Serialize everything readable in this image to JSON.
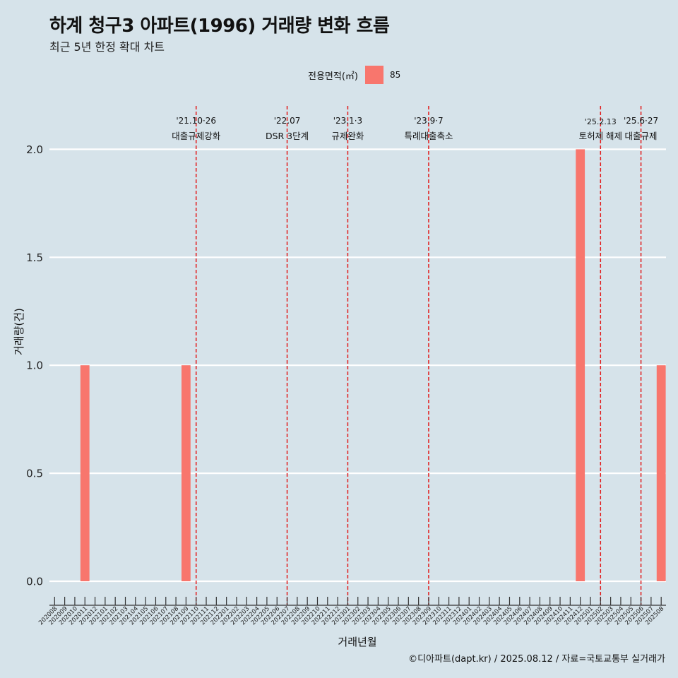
{
  "header": {
    "title": "하계 청구3 아파트(1996) 거래량 변화 흐름",
    "subtitle": "최근 5년 한정 확대 차트"
  },
  "legend": {
    "title": "전용면적(㎡)",
    "label": "85",
    "color": "#f8766d"
  },
  "footer": {
    "credit": "©디아파트(dapt.kr) / 2025.08.12 / 자료=국토교통부 실거래가"
  },
  "chart_data": {
    "type": "bar",
    "xlabel": "거래년월",
    "ylabel": "거래량(건)",
    "ylim": [
      0,
      2
    ],
    "yticks": [
      "0.0",
      "0.5",
      "1.0",
      "1.5",
      "2.0"
    ],
    "grid": "horizontal",
    "legend_position": "top",
    "categories": [
      "202008",
      "202009",
      "202010",
      "202011",
      "202012",
      "202101",
      "202102",
      "202103",
      "202104",
      "202105",
      "202106",
      "202107",
      "202108",
      "202109",
      "202110",
      "202111",
      "202112",
      "202201",
      "202202",
      "202203",
      "202204",
      "202205",
      "202206",
      "202207",
      "202208",
      "202209",
      "202210",
      "202211",
      "202212",
      "202301",
      "202302",
      "202303",
      "202304",
      "202305",
      "202306",
      "202307",
      "202308",
      "202309",
      "202310",
      "202311",
      "202312",
      "202401",
      "202402",
      "202403",
      "202404",
      "202405",
      "202406",
      "202407",
      "202408",
      "202409",
      "202410",
      "202411",
      "202412",
      "202501",
      "202502",
      "202503",
      "202504",
      "202505",
      "202506",
      "202507",
      "202508"
    ],
    "series": [
      {
        "name": "85",
        "color": "#f8766d",
        "values": [
          0,
          0,
          0,
          1,
          0,
          0,
          0,
          0,
          0,
          0,
          0,
          0,
          0,
          1,
          0,
          0,
          0,
          0,
          0,
          0,
          0,
          0,
          0,
          0,
          0,
          0,
          0,
          0,
          0,
          0,
          0,
          0,
          0,
          0,
          0,
          0,
          0,
          0,
          0,
          0,
          0,
          0,
          0,
          0,
          0,
          0,
          0,
          0,
          0,
          0,
          0,
          0,
          2,
          0,
          0,
          0,
          0,
          0,
          0,
          0,
          1
        ]
      }
    ],
    "annotations": [
      {
        "x": "202110",
        "date": "'21.10·26",
        "label": "대출규제강화"
      },
      {
        "x": "202207",
        "date": "'22.07",
        "label": "DSR 3단계"
      },
      {
        "x": "202301",
        "date": "'23.1·3",
        "label": "규제완화"
      },
      {
        "x": "202309",
        "date": "'23.9·7",
        "label": "특례대출축소"
      },
      {
        "x": "202502",
        "date": "'25.2.13",
        "label": "토허제 해제"
      },
      {
        "x": "202506",
        "date": "'25.6·27",
        "label": "대출규제"
      }
    ]
  }
}
